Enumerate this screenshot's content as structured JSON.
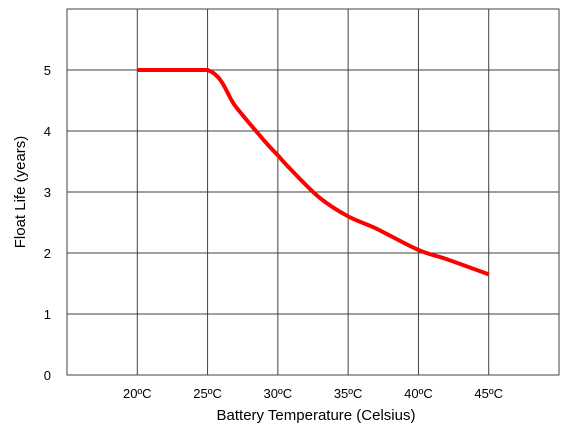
{
  "chart_data": {
    "type": "line",
    "title": "",
    "xlabel": "Battery Temperature (Celsius)",
    "ylabel": "Float Life (years)",
    "x_ticks": [
      "20ºC",
      "25ºC",
      "30ºC",
      "35ºC",
      "40ºC",
      "45ºC"
    ],
    "y_ticks": [
      "0",
      "1",
      "2",
      "3",
      "4",
      "5"
    ],
    "xlim": [
      15,
      50
    ],
    "ylim": [
      0,
      6
    ],
    "grid": true,
    "series": [
      {
        "color": "#ff0000",
        "x": [
          20,
          25,
          27,
          29,
          30,
          31,
          33,
          35,
          37,
          40,
          42,
          45
        ],
        "y": [
          5.0,
          5.0,
          4.4,
          3.85,
          3.6,
          3.35,
          2.9,
          2.6,
          2.4,
          2.05,
          1.9,
          1.65
        ]
      }
    ]
  }
}
